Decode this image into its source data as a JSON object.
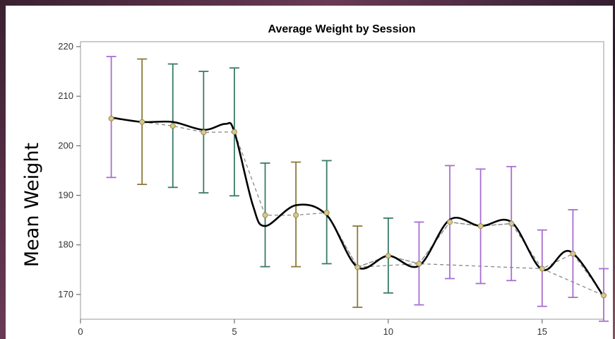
{
  "chart_data": {
    "type": "line",
    "title": "Average Weight by Session",
    "xlabel": "",
    "ylabel": "Mean Weight",
    "xlim": [
      0,
      17
    ],
    "ylim": [
      165,
      221
    ],
    "x_ticks": [
      "0",
      "5",
      "10",
      "15"
    ],
    "y_ticks": [
      "170",
      "180",
      "190",
      "200",
      "210",
      "220"
    ],
    "grid": false,
    "legend": "none",
    "series": [
      {
        "style": "error bars with mean markers",
        "x": [
          1,
          2,
          3,
          4,
          5,
          6,
          7,
          8,
          9,
          10,
          11,
          12,
          13,
          14,
          15,
          16,
          17
        ],
        "mean": [
          205.5,
          204.8,
          204.0,
          202.7,
          202.8,
          186.0,
          186.0,
          186.5,
          175.5,
          177.8,
          176.2,
          184.6,
          183.8,
          184.3,
          175.2,
          178.2,
          169.8
        ],
        "upper": [
          218.0,
          217.5,
          216.5,
          215.0,
          215.7,
          196.5,
          196.7,
          197.0,
          183.8,
          185.4,
          184.6,
          196.0,
          195.3,
          195.8,
          183.0,
          187.1,
          175.2
        ],
        "lower": [
          193.6,
          192.2,
          191.6,
          190.5,
          189.9,
          175.6,
          175.6,
          176.2,
          167.4,
          170.3,
          167.9,
          173.2,
          172.2,
          172.8,
          167.6,
          169.4,
          164.6
        ],
        "bar_colors": [
          "#a86fd0",
          "#8a7a3a",
          "#3a7a68",
          "#3a7a68",
          "#3a7a68",
          "#3a7a68",
          "#8a7a3a",
          "#3a7a68",
          "#8a7a3a",
          "#3a7a68",
          "#a86fd0",
          "#a86fd0",
          "#a86fd0",
          "#a86fd0",
          "#a86fd0",
          "#a86fd0",
          "#a86fd0"
        ]
      },
      {
        "style": "smooth spline fit",
        "color": "#000000",
        "x": [
          1,
          2,
          3,
          4,
          4.7,
          5,
          5.6,
          6,
          7,
          8,
          9,
          10,
          11,
          12,
          13,
          14,
          15,
          15.9,
          17
        ],
        "y": [
          205.7,
          204.8,
          204.8,
          203.2,
          204.4,
          202.8,
          188.0,
          183.8,
          188.0,
          186.0,
          175.5,
          177.8,
          175.8,
          185.1,
          183.8,
          184.6,
          175.0,
          178.7,
          169.6
        ]
      },
      {
        "style": "dashed line through means",
        "color": "#888888",
        "x": [
          1,
          2,
          3,
          4,
          5,
          6,
          7,
          8,
          9,
          10,
          11,
          12,
          13,
          14
        ],
        "y": [
          205.5,
          204.8,
          204.0,
          202.7,
          202.8,
          186.0,
          186.0,
          186.5,
          175.5,
          177.8,
          176.2,
          184.6,
          183.8,
          184.3
        ]
      },
      {
        "style": "dashed line through means",
        "color": "#888888",
        "x": [
          8,
          9,
          10,
          11,
          12,
          13,
          14,
          15,
          16,
          17
        ],
        "y": [
          186.5,
          175.5,
          177.8,
          176.2,
          184.6,
          183.8,
          184.3,
          175.2,
          178.2,
          169.8
        ]
      },
      {
        "style": "dashed line through means",
        "color": "#888888",
        "x": [
          9,
          11,
          15,
          17
        ],
        "y": [
          175.5,
          176.2,
          175.2,
          169.8
        ]
      }
    ]
  }
}
